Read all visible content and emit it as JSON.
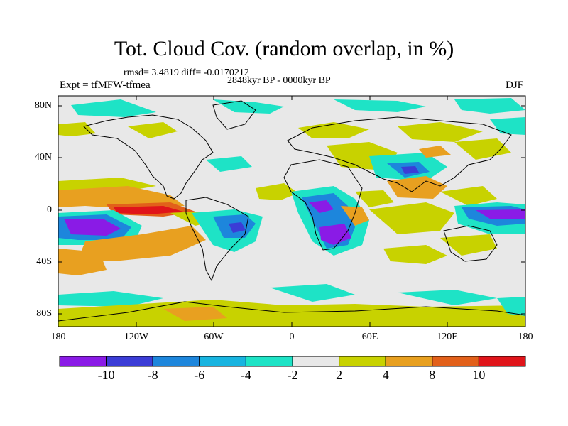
{
  "title": "Tot. Cloud Cov. (random overlap, in %)",
  "stats": "rmsd= 3.4819 diff= -0.0170212",
  "period": "2848kyr BP - 0000kyr BP",
  "experiment": "Expt = tfMFW-tfmea",
  "season": "DJF",
  "y_axis_labels": [
    "80N",
    "40N",
    "0",
    "40S",
    "80S"
  ],
  "x_axis_labels": [
    "180",
    "120W",
    "60W",
    "0",
    "60E",
    "120E",
    "180"
  ],
  "colorbar": {
    "labels": [
      "-10",
      "-8",
      "-6",
      "-4",
      "-2",
      "2",
      "4",
      "8",
      "10"
    ],
    "colors": [
      "#8a1be6",
      "#3b3cd6",
      "#1d86dc",
      "#18b4e0",
      "#1ee3c6",
      "#e8e8e8",
      "#c8d200",
      "#e8a020",
      "#e2601a",
      "#e0141a"
    ]
  }
}
